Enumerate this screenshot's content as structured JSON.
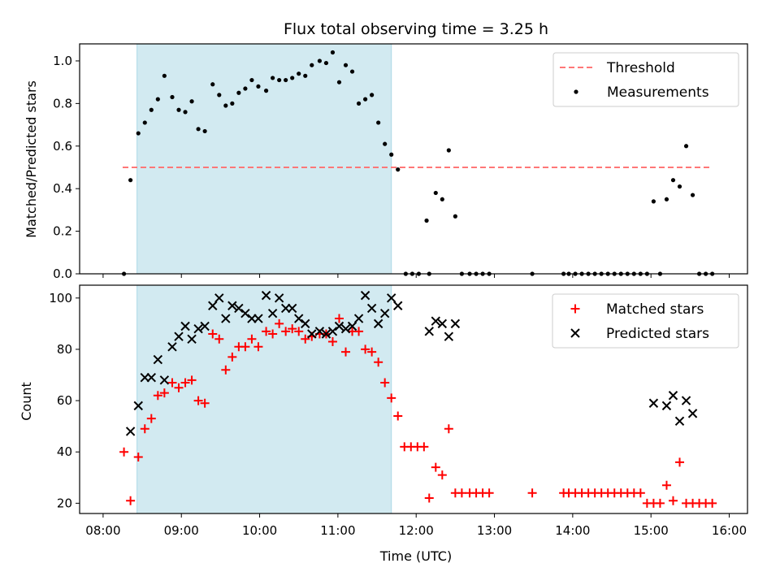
{
  "title": "Flux total observing time = 3.25 h",
  "xlabel": "Time (UTC)",
  "colors": {
    "threshold": "#ff7777",
    "measurements": "#000000",
    "matched": "#ff0000",
    "predicted": "#000000",
    "shade": "#add8e6"
  },
  "chart_data": [
    {
      "type": "scatter",
      "ylabel": "Matched/Predicted stars",
      "ylim": [
        0,
        1.08
      ],
      "yticks": [
        0.0,
        0.2,
        0.4,
        0.6,
        0.8,
        1.0
      ],
      "ytick_labels": [
        "0.0",
        "0.2",
        "0.4",
        "0.6",
        "0.8",
        "1.0"
      ],
      "x_range": [
        "08:00",
        "16:00"
      ],
      "xticks": [
        "08:00",
        "09:00",
        "10:00",
        "11:00",
        "12:00",
        "13:00",
        "14:00",
        "15:00",
        "16:00"
      ],
      "shaded_span": [
        "08:26",
        "11:41"
      ],
      "legend_position": "top-right",
      "series": [
        {
          "name": "Threshold",
          "style": "dashed-line",
          "x": [
            "08:15",
            "15:47"
          ],
          "y": [
            0.5,
            0.5
          ]
        },
        {
          "name": "Measurements",
          "style": "dot",
          "x": [
            "08:16",
            "08:21",
            "08:27",
            "08:32",
            "08:37",
            "08:42",
            "08:47",
            "08:53",
            "08:58",
            "09:03",
            "09:08",
            "09:13",
            "09:18",
            "09:24",
            "09:29",
            "09:34",
            "09:39",
            "09:44",
            "09:49",
            "09:54",
            "09:59",
            "10:05",
            "10:10",
            "10:15",
            "10:20",
            "10:25",
            "10:30",
            "10:35",
            "10:40",
            "10:46",
            "10:51",
            "10:56",
            "11:01",
            "11:06",
            "11:11",
            "11:16",
            "11:21",
            "11:26",
            "11:31",
            "11:36",
            "11:41",
            "11:46",
            "11:52",
            "11:57",
            "12:02",
            "12:08",
            "12:10",
            "12:15",
            "12:20",
            "12:25",
            "12:30",
            "12:35",
            "12:41",
            "12:46",
            "12:51",
            "12:56",
            "13:29",
            "13:53",
            "13:57",
            "14:02",
            "14:07",
            "14:12",
            "14:17",
            "14:22",
            "14:27",
            "14:32",
            "14:37",
            "14:42",
            "14:47",
            "14:52",
            "14:57",
            "15:02",
            "15:07",
            "15:12",
            "15:17",
            "15:22",
            "15:27",
            "15:32",
            "15:37",
            "15:42",
            "15:47"
          ],
          "y": [
            0.0,
            0.44,
            0.66,
            0.71,
            0.77,
            0.82,
            0.93,
            0.83,
            0.77,
            0.76,
            0.81,
            0.68,
            0.67,
            0.89,
            0.84,
            0.79,
            0.8,
            0.85,
            0.87,
            0.91,
            0.88,
            0.86,
            0.92,
            0.91,
            0.91,
            0.92,
            0.94,
            0.93,
            0.98,
            1.0,
            0.99,
            1.04,
            0.9,
            0.98,
            0.95,
            0.8,
            0.82,
            0.84,
            0.71,
            0.61,
            0.56,
            0.49,
            0.0,
            0.0,
            0.0,
            0.25,
            0.0,
            0.38,
            0.35,
            0.58,
            0.27,
            0.0,
            0.0,
            0.0,
            0.0,
            0.0,
            0.0,
            0.0,
            0.0,
            0.0,
            0.0,
            0.0,
            0.0,
            0.0,
            0.0,
            0.0,
            0.0,
            0.0,
            0.0,
            0.0,
            0.0,
            0.34,
            0.0,
            0.35,
            0.44,
            0.41,
            0.6,
            0.37,
            0.0,
            0.0,
            0.0
          ]
        }
      ]
    },
    {
      "type": "scatter",
      "ylabel": "Count",
      "ylim": [
        16,
        105
      ],
      "yticks": [
        20,
        40,
        60,
        80,
        100
      ],
      "ytick_labels": [
        "20",
        "40",
        "60",
        "80",
        "100"
      ],
      "x_range": [
        "08:00",
        "16:00"
      ],
      "xticks": [
        "08:00",
        "09:00",
        "10:00",
        "11:00",
        "12:00",
        "13:00",
        "14:00",
        "15:00",
        "16:00"
      ],
      "xtick_labels": [
        "08:00",
        "09:00",
        "10:00",
        "11:00",
        "12:00",
        "13:00",
        "14:00",
        "15:00",
        "16:00"
      ],
      "shaded_span": [
        "08:26",
        "11:41"
      ],
      "legend_position": "top-right",
      "series": [
        {
          "name": "Matched stars",
          "marker": "plus",
          "x": [
            "08:16",
            "08:21",
            "08:27",
            "08:32",
            "08:37",
            "08:42",
            "08:47",
            "08:53",
            "08:58",
            "09:03",
            "09:08",
            "09:13",
            "09:18",
            "09:24",
            "09:29",
            "09:34",
            "09:39",
            "09:44",
            "09:49",
            "09:54",
            "09:59",
            "10:05",
            "10:10",
            "10:15",
            "10:20",
            "10:25",
            "10:30",
            "10:35",
            "10:40",
            "10:46",
            "10:51",
            "10:56",
            "11:01",
            "11:06",
            "11:11",
            "11:16",
            "11:21",
            "11:26",
            "11:31",
            "11:36",
            "11:41",
            "11:46",
            "11:51",
            "11:56",
            "12:01",
            "12:06",
            "12:10",
            "12:15",
            "12:20",
            "12:25",
            "12:30",
            "12:35",
            "12:41",
            "12:46",
            "12:51",
            "12:56",
            "13:29",
            "13:53",
            "13:57",
            "14:02",
            "14:07",
            "14:12",
            "14:17",
            "14:22",
            "14:27",
            "14:32",
            "14:37",
            "14:42",
            "14:47",
            "14:52",
            "14:57",
            "15:02",
            "15:07",
            "15:12",
            "15:17",
            "15:22",
            "15:27",
            "15:32",
            "15:37",
            "15:42",
            "15:47"
          ],
          "y": [
            40,
            21,
            38,
            49,
            53,
            62,
            63,
            67,
            65,
            67,
            68,
            60,
            59,
            86,
            84,
            72,
            77,
            81,
            81,
            84,
            81,
            87,
            86,
            90,
            87,
            88,
            87,
            84,
            85,
            86,
            86,
            83,
            92,
            79,
            87,
            87,
            80,
            79,
            75,
            67,
            61,
            54,
            42,
            42,
            42,
            42,
            22,
            34,
            31,
            49,
            24,
            24,
            24,
            24,
            24,
            24,
            24,
            24,
            24,
            24,
            24,
            24,
            24,
            24,
            24,
            24,
            24,
            24,
            24,
            24,
            20,
            20,
            20,
            27,
            21,
            36,
            20,
            20,
            20,
            20,
            20
          ]
        },
        {
          "name": "Predicted stars",
          "marker": "cross",
          "x": [
            "08:21",
            "08:27",
            "08:32",
            "08:37",
            "08:42",
            "08:47",
            "08:53",
            "08:58",
            "09:03",
            "09:08",
            "09:13",
            "09:18",
            "09:24",
            "09:29",
            "09:34",
            "09:39",
            "09:44",
            "09:49",
            "09:54",
            "09:59",
            "10:05",
            "10:10",
            "10:15",
            "10:20",
            "10:25",
            "10:30",
            "10:35",
            "10:40",
            "10:46",
            "10:51",
            "10:56",
            "11:01",
            "11:06",
            "11:11",
            "11:16",
            "11:21",
            "11:26",
            "11:31",
            "11:36",
            "11:41",
            "11:46",
            "12:10",
            "12:15",
            "12:20",
            "12:25",
            "12:30",
            "15:02",
            "15:12",
            "15:17",
            "15:22",
            "15:27",
            "15:32"
          ],
          "y": [
            48,
            58,
            69,
            69,
            76,
            68,
            81,
            85,
            89,
            84,
            88,
            89,
            97,
            100,
            92,
            97,
            96,
            94,
            92,
            92,
            101,
            94,
            100,
            96,
            96,
            92,
            90,
            86,
            87,
            86,
            87,
            89,
            88,
            89,
            92,
            101,
            96,
            90,
            94,
            100,
            97,
            87,
            91,
            90,
            85,
            90,
            59,
            58,
            62,
            52,
            60,
            55
          ]
        }
      ]
    }
  ]
}
